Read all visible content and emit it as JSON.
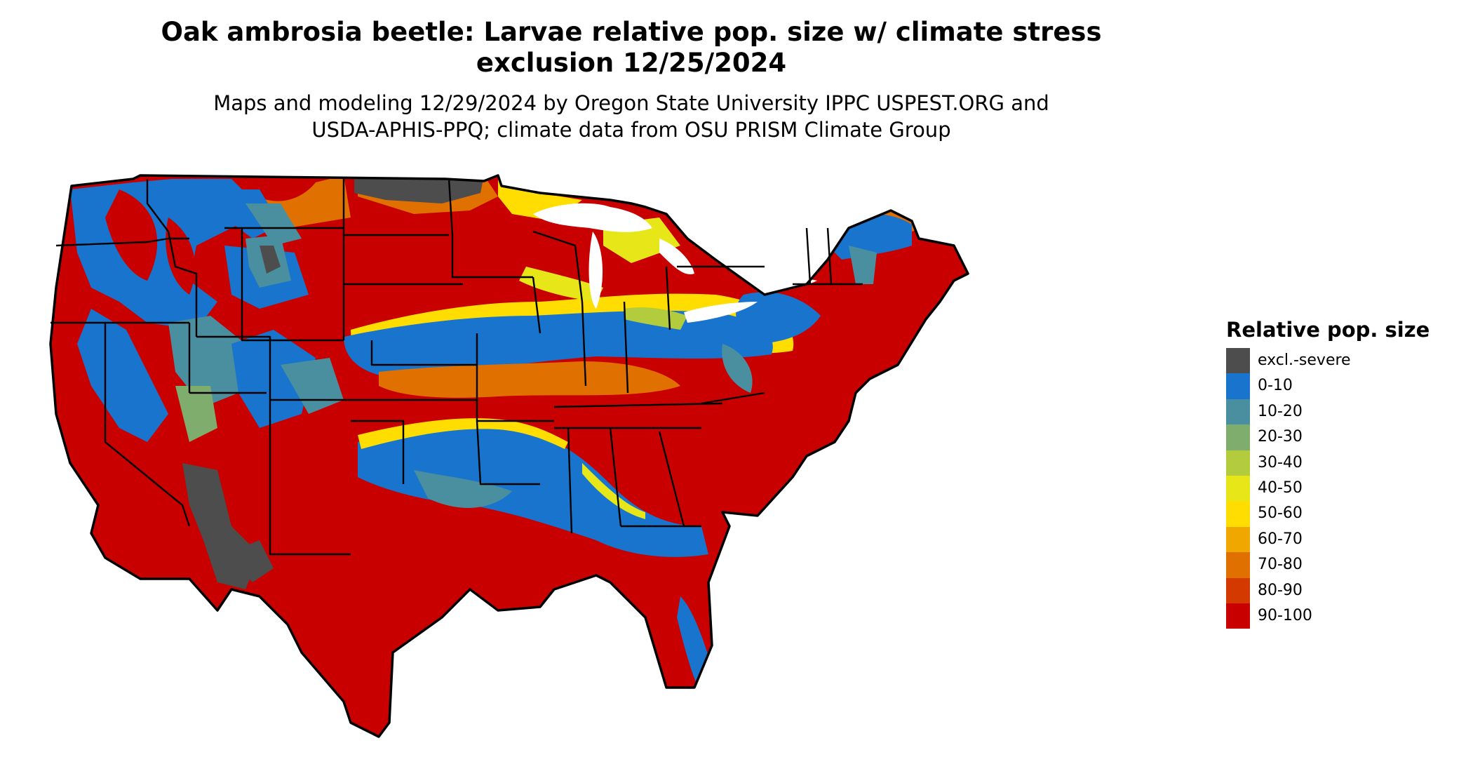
{
  "title_line1": "Oak ambrosia beetle: Larvae relative pop. size w/ climate stress",
  "title_line2": "exclusion 12/25/2024",
  "subtitle_line1": "Maps and modeling 12/29/2024 by Oregon State University IPPC USPEST.ORG and",
  "subtitle_line2": "USDA-APHIS-PPQ; climate data from OSU PRISM Climate Group",
  "map": {
    "name": "Contiguous United States",
    "base_color": "#c80000"
  },
  "legend": {
    "title": "Relative pop. size",
    "items": [
      {
        "label": "excl.-severe",
        "color": "#4d4d4d"
      },
      {
        "label": "0-10",
        "color": "#1874cd"
      },
      {
        "label": "10-20",
        "color": "#4a8fa0"
      },
      {
        "label": "20-30",
        "color": "#7fad6e"
      },
      {
        "label": "30-40",
        "color": "#b3cc3e"
      },
      {
        "label": "40-50",
        "color": "#e6e619"
      },
      {
        "label": "50-60",
        "color": "#ffdd00"
      },
      {
        "label": "60-70",
        "color": "#f0a800"
      },
      {
        "label": "70-80",
        "color": "#e07000"
      },
      {
        "label": "80-90",
        "color": "#d43a00"
      },
      {
        "label": "90-100",
        "color": "#c80000"
      }
    ]
  }
}
